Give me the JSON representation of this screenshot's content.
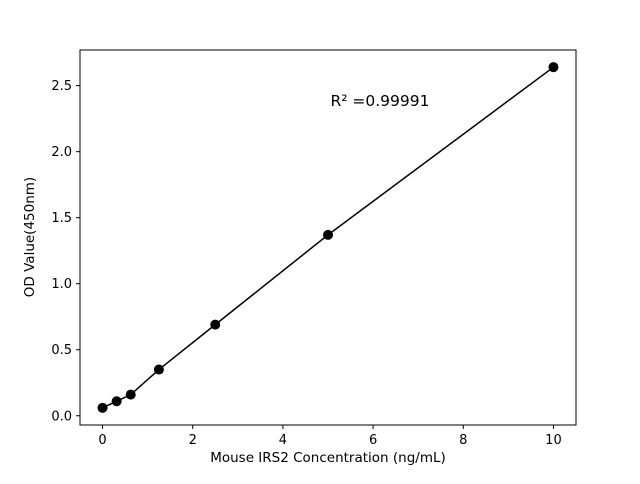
{
  "chart_data": {
    "type": "scatter",
    "title": "",
    "xlabel": "Mouse IRS2 Concentration (ng/mL)",
    "ylabel": "OD Value(450nm)",
    "annotation": "R² =0.99991",
    "x": [
      0,
      0.3125,
      0.625,
      1.25,
      2.5,
      5,
      10
    ],
    "y": [
      0.06,
      0.11,
      0.16,
      0.35,
      0.69,
      1.37,
      2.64
    ],
    "xlim": [
      -0.5,
      10.5
    ],
    "ylim": [
      -0.07,
      2.77
    ],
    "xticks": [
      0,
      2,
      4,
      6,
      8,
      10
    ],
    "xtick_labels": [
      "0",
      "2",
      "4",
      "6",
      "8",
      "10"
    ],
    "yticks": [
      0.0,
      0.5,
      1.0,
      1.5,
      2.0,
      2.5
    ],
    "ytick_labels": [
      "0.0",
      "0.5",
      "1.0",
      "1.5",
      "2.0",
      "2.5"
    ],
    "line_color": "#000000",
    "marker_color": "#000000",
    "background_color": "#ffffff",
    "legend": "none",
    "grid": "off"
  }
}
